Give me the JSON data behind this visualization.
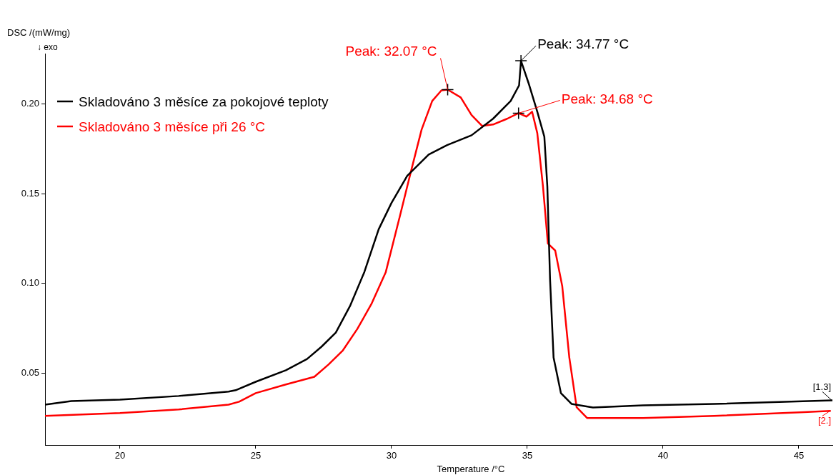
{
  "chart_data": {
    "type": "line",
    "ylabel": "DSC /(mW/mg)",
    "xlabel": "Temperature /°C",
    "legend": "top left",
    "grid": false,
    "marker": "none",
    "line_style": "solid",
    "xlim": [
      17.24,
      46.24
    ],
    "ylim": [
      0.01,
      0.228
    ],
    "xticks": [
      20,
      25,
      30,
      35,
      40,
      45
    ],
    "yticks": [
      {
        "value": 0.05,
        "label": "0.05"
      },
      {
        "value": 0.1,
        "label": "0.10"
      },
      {
        "value": 0.15,
        "label": "0.15"
      },
      {
        "value": 0.2,
        "label": "0.20"
      }
    ],
    "series": [
      {
        "name": "Skladováno 3 měsíce za pokojové teploty",
        "color": "#000000",
        "x": [
          17.24,
          18.21,
          20,
          22.16,
          24,
          24.26,
          25,
          26.11,
          26.89,
          27.42,
          27.95,
          28.47,
          29,
          29.53,
          30,
          30.58,
          31.37,
          32.05,
          32.95,
          33.74,
          34.39,
          34.7,
          34.77,
          35.05,
          35.37,
          35.63,
          35.74,
          35.84,
          35.97,
          36.24,
          36.63,
          37.42,
          39.26,
          41.89,
          46.24
        ],
        "values": [
          0.0325,
          0.0345,
          0.0353,
          0.0373,
          0.0397,
          0.0405,
          0.0452,
          0.0516,
          0.0579,
          0.0647,
          0.0726,
          0.0873,
          0.1063,
          0.1302,
          0.1448,
          0.1599,
          0.1718,
          0.177,
          0.1825,
          0.1917,
          0.2016,
          0.2103,
          0.224,
          0.2115,
          0.1956,
          0.1817,
          0.154,
          0.1024,
          0.0587,
          0.0389,
          0.0329,
          0.0309,
          0.0321,
          0.0329,
          0.0349
        ]
      },
      {
        "name": "Skladováno 3 měsíce při 26 °C",
        "color": "#ff0000",
        "x": [
          17.24,
          20,
          22.16,
          24,
          24.39,
          25,
          26.11,
          27.16,
          27.68,
          28.21,
          28.74,
          29.26,
          29.79,
          30.32,
          30.71,
          31.11,
          31.5,
          31.84,
          32.07,
          32.55,
          32.95,
          33.34,
          33.74,
          34.26,
          34.68,
          34.97,
          35.18,
          35.37,
          35.58,
          35.76,
          36.03,
          36.29,
          36.55,
          36.82,
          37.21,
          39.26,
          41.89,
          45.05,
          46.18
        ],
        "values": [
          0.0262,
          0.0278,
          0.0298,
          0.0325,
          0.0341,
          0.0389,
          0.0437,
          0.048,
          0.0548,
          0.0627,
          0.0746,
          0.0885,
          0.1063,
          0.1381,
          0.1619,
          0.1857,
          0.2016,
          0.2075,
          0.2079,
          0.2036,
          0.1937,
          0.1877,
          0.1885,
          0.1917,
          0.1948,
          0.1929,
          0.1956,
          0.1837,
          0.154,
          0.1222,
          0.1183,
          0.0984,
          0.0587,
          0.031,
          0.025,
          0.025,
          0.0262,
          0.0282,
          0.029
        ]
      }
    ],
    "annotations": [
      "↓ exo",
      {
        "text": "Peak: 32.07 °C",
        "x": 32.07,
        "y": 0.2079
      },
      {
        "text": "Peak: 34.77 °C",
        "x": 34.77,
        "y": 0.224
      },
      {
        "text": "Peak: 34.68 °C",
        "x": 34.68,
        "y": 0.1948
      },
      {
        "text": "[1.3]",
        "x": 46.24,
        "y": 0.0349
      },
      {
        "text": "[2.]",
        "x": 46.18,
        "y": 0.029
      }
    ]
  }
}
